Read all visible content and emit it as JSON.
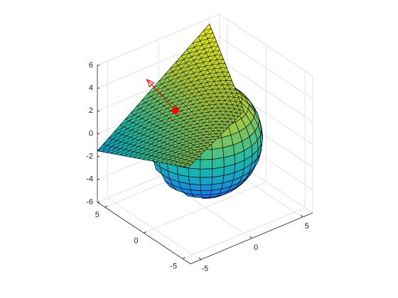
{
  "chart_data": {
    "type": "surface3d",
    "xlim": [
      -6,
      6
    ],
    "ylim": [
      -6,
      6
    ],
    "zlim": [
      -6,
      6
    ],
    "xticks": [
      -5,
      0,
      5
    ],
    "yticks": [
      -5,
      0,
      5
    ],
    "zticks": [
      -6,
      -4,
      -2,
      0,
      2,
      4,
      6
    ],
    "grid": true,
    "sphere": {
      "center": [
        0,
        0,
        0
      ],
      "radius": 4.5
    },
    "plane": {
      "vertices": [
        [
          -6,
          6,
          -1.5
        ],
        [
          5,
          6,
          5.5
        ],
        [
          2.3,
          -2,
          2.5
        ],
        [
          -6,
          -5.7,
          2.3
        ]
      ]
    },
    "point": {
      "position": [
        -2,
        1.2,
        2.7
      ],
      "color": "#ff0000"
    },
    "arrow": {
      "vector": [
        -2,
        1.05,
        3
      ],
      "color": "#ff0000"
    }
  }
}
